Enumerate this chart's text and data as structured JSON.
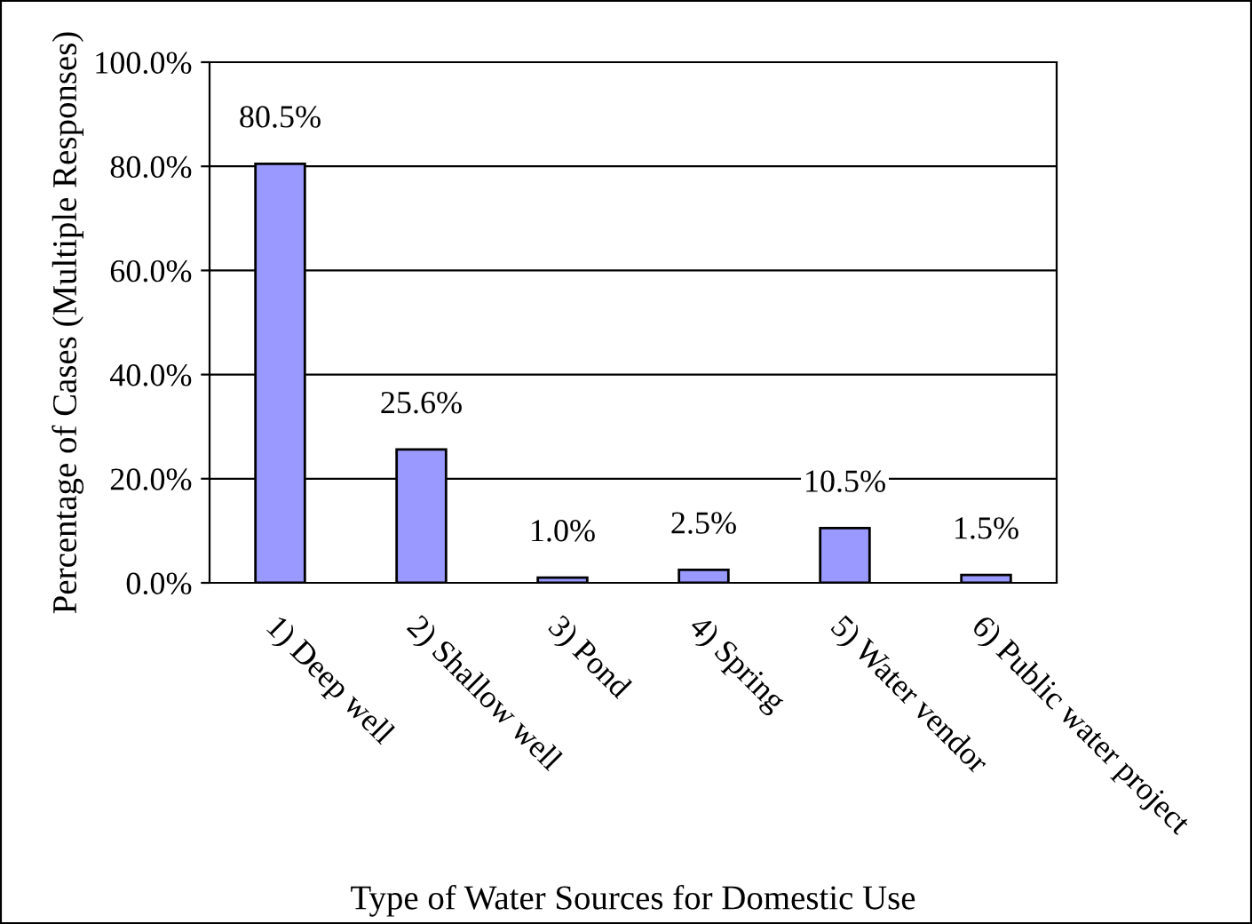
{
  "chart_data": {
    "type": "bar",
    "xlabel": "Type of Water Sources for Domestic Use",
    "ylabel": "Percentage of Cases (Multiple Responses)",
    "categories": [
      "1) Deep well",
      "2) Shallow well",
      "3) Pond",
      "4) Spring",
      "5) Water vendor",
      "6) Public water project"
    ],
    "values": [
      80.5,
      25.6,
      1.0,
      2.5,
      10.5,
      1.5
    ],
    "value_labels": [
      "80.5%",
      "25.6%",
      "1.0%",
      "2.5%",
      "10.5%",
      "1.5%"
    ],
    "color": "#9999ff",
    "ylim": [
      0,
      100
    ],
    "yticks": [
      {
        "value": 0,
        "label": "0.0%"
      },
      {
        "value": 20,
        "label": "20.0%"
      },
      {
        "value": 40,
        "label": "40.0%"
      },
      {
        "value": 60,
        "label": "60.0%"
      },
      {
        "value": 80,
        "label": "80.0%"
      },
      {
        "value": 100,
        "label": "100.0%"
      }
    ],
    "grid": "y",
    "legend": false
  }
}
